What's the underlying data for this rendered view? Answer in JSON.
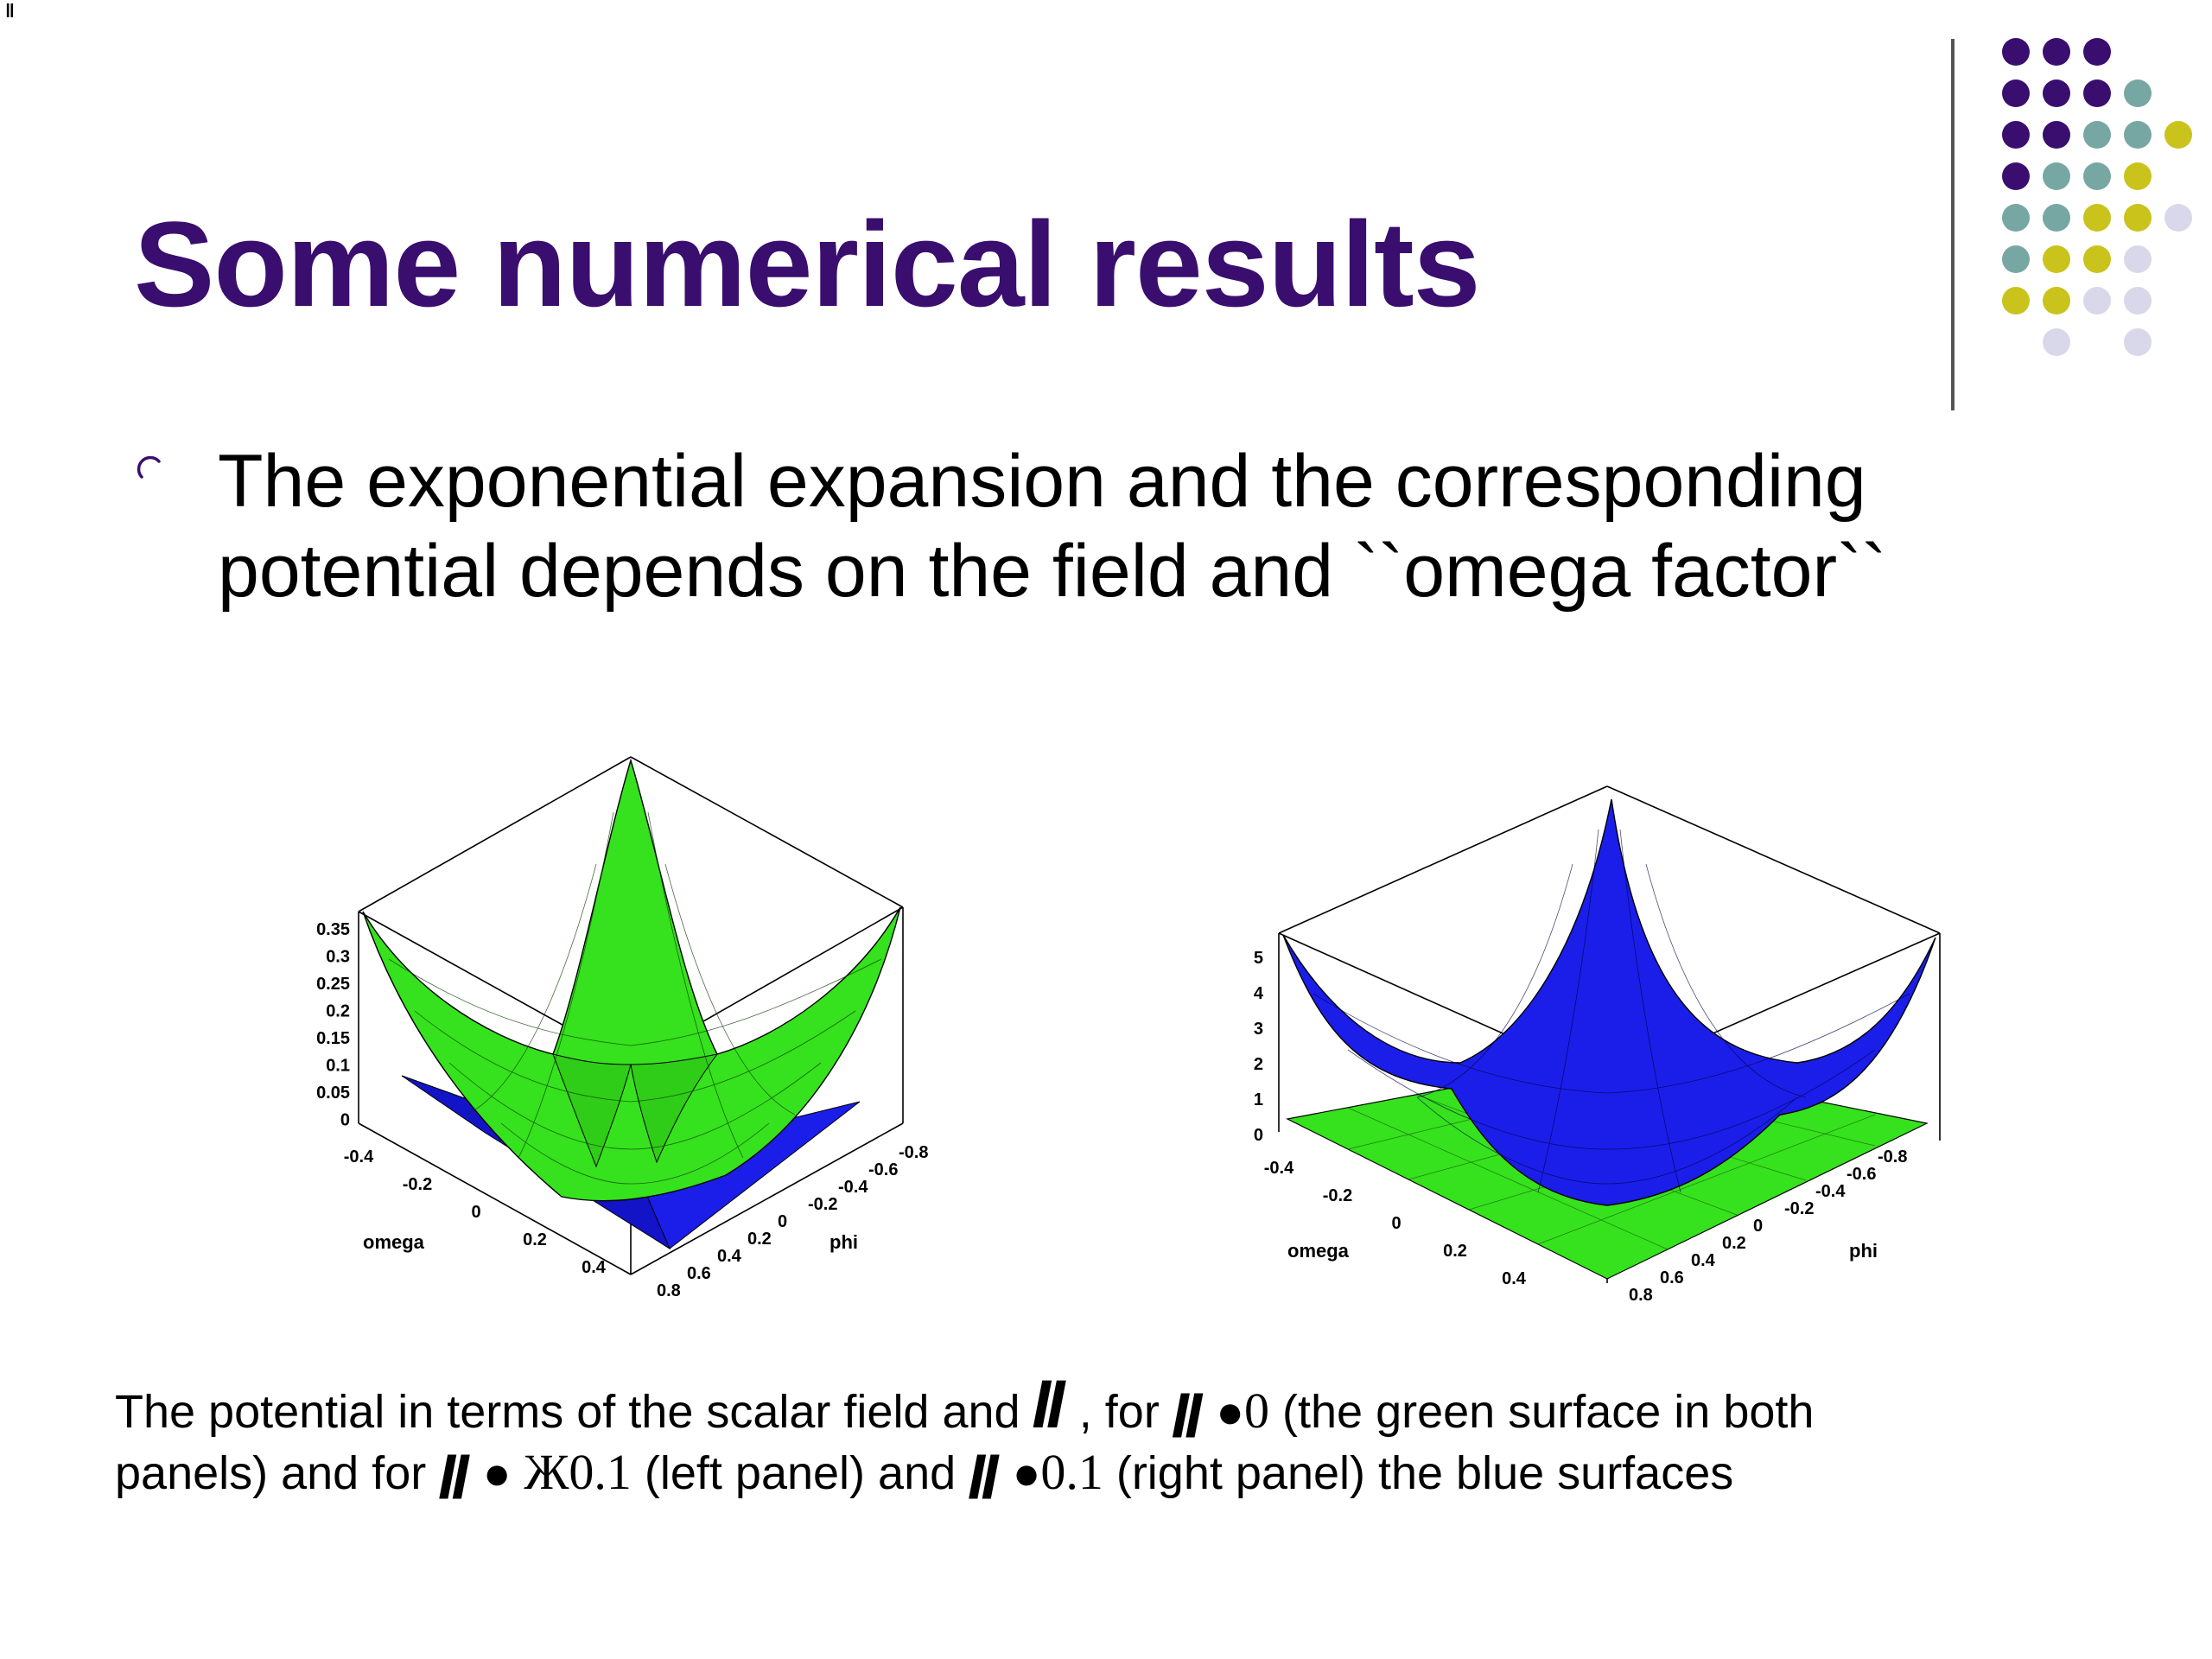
{
  "corner_glyph": "ǁ",
  "title": "Some numerical results",
  "bullet": {
    "line1": "The exponential expansion and the corresponding",
    "line2": "potential depends on the field and ``omega factor``"
  },
  "decor": {
    "purple": "#3a0e6e",
    "teal": "#77a7a3",
    "yellow": "#c9c31c",
    "lavender": "#d8d8ea"
  },
  "left_panel": {
    "z_ticks": [
      "0.35",
      "0.3",
      "0.25",
      "0.2",
      "0.15",
      "0.1",
      "0.05",
      "0"
    ],
    "omega_ticks": [
      "-0.4",
      "-0.2",
      "0",
      "0.2",
      "0.4"
    ],
    "phi_ticks": [
      "-0.8",
      "-0.6",
      "-0.4",
      "-0.2",
      "0",
      "0.2",
      "0.4",
      "0.6",
      "0.8"
    ],
    "omega_label": "omega",
    "phi_label": "phi"
  },
  "right_panel": {
    "z_ticks": [
      "5",
      "4",
      "3",
      "2",
      "1",
      "0"
    ],
    "omega_ticks": [
      "-0.4",
      "-0.2",
      "0",
      "0.2",
      "0.4"
    ],
    "phi_ticks": [
      "-0.8",
      "-0.6",
      "-0.4",
      "-0.2",
      "0",
      "0.2",
      "0.4",
      "0.6",
      "0.8"
    ],
    "omega_label": "omega",
    "phi_label": "phi"
  },
  "caption": {
    "l1_a": "The potential in terms of the scalar field and ",
    "l1_sym1": "ǁ",
    "l1_b": " , for ",
    "l1_sym2": "ǁ",
    "l1_op1": " ●",
    "l1_val1": "0",
    "l1_c": "  (the green surface in both",
    "l2_a": "panels) and for ",
    "l2_sym3": "ǁ",
    "l2_op2": "  ● ",
    "l2_neg": "Ж",
    "l2_val2": "0.1",
    "l2_b": " (left panel) and ",
    "l2_sym4": "ǁ",
    "l2_op3": "  ●",
    "l2_val3": "0.1",
    "l2_c": "  (right panel) the blue surfaces"
  }
}
